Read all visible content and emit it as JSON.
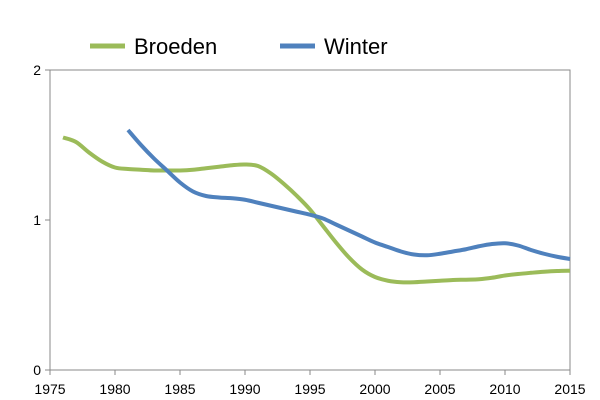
{
  "chart_data": {
    "type": "line",
    "title": "",
    "xlabel": "",
    "ylabel": "",
    "xlim": [
      1975,
      2015
    ],
    "ylim": [
      0,
      2
    ],
    "x_ticks": [
      1975,
      1980,
      1985,
      1990,
      1995,
      2000,
      2005,
      2010,
      2015
    ],
    "y_ticks": [
      0,
      1,
      2
    ],
    "grid": false,
    "legend_position": "top",
    "series": [
      {
        "name": "Broeden",
        "color": "#9BBB59",
        "points": [
          [
            1976,
            1.55
          ],
          [
            1977,
            1.52
          ],
          [
            1978,
            1.45
          ],
          [
            1979,
            1.39
          ],
          [
            1980,
            1.35
          ],
          [
            1981,
            1.34
          ],
          [
            1982,
            1.335
          ],
          [
            1983,
            1.33
          ],
          [
            1984,
            1.33
          ],
          [
            1985,
            1.33
          ],
          [
            1986,
            1.335
          ],
          [
            1987,
            1.345
          ],
          [
            1988,
            1.355
          ],
          [
            1989,
            1.365
          ],
          [
            1990,
            1.37
          ],
          [
            1991,
            1.36
          ],
          [
            1992,
            1.31
          ],
          [
            1993,
            1.24
          ],
          [
            1994,
            1.16
          ],
          [
            1995,
            1.07
          ],
          [
            1996,
            0.96
          ],
          [
            1997,
            0.85
          ],
          [
            1998,
            0.75
          ],
          [
            1999,
            0.67
          ],
          [
            2000,
            0.62
          ],
          [
            2001,
            0.595
          ],
          [
            2002,
            0.585
          ],
          [
            2003,
            0.585
          ],
          [
            2004,
            0.59
          ],
          [
            2005,
            0.595
          ],
          [
            2006,
            0.6
          ],
          [
            2007,
            0.602
          ],
          [
            2008,
            0.605
          ],
          [
            2009,
            0.615
          ],
          [
            2010,
            0.63
          ],
          [
            2011,
            0.64
          ],
          [
            2012,
            0.648
          ],
          [
            2013,
            0.655
          ],
          [
            2014,
            0.66
          ],
          [
            2015,
            0.662
          ]
        ]
      },
      {
        "name": "Winter",
        "color": "#4F81BD",
        "points": [
          [
            1981,
            1.6
          ],
          [
            1982,
            1.5
          ],
          [
            1983,
            1.41
          ],
          [
            1984,
            1.33
          ],
          [
            1985,
            1.25
          ],
          [
            1986,
            1.19
          ],
          [
            1987,
            1.16
          ],
          [
            1988,
            1.15
          ],
          [
            1989,
            1.145
          ],
          [
            1990,
            1.135
          ],
          [
            1991,
            1.115
          ],
          [
            1992,
            1.095
          ],
          [
            1993,
            1.075
          ],
          [
            1994,
            1.055
          ],
          [
            1995,
            1.035
          ],
          [
            1996,
            1.01
          ],
          [
            1997,
            0.97
          ],
          [
            1998,
            0.93
          ],
          [
            1999,
            0.89
          ],
          [
            2000,
            0.85
          ],
          [
            2001,
            0.82
          ],
          [
            2002,
            0.79
          ],
          [
            2003,
            0.77
          ],
          [
            2004,
            0.765
          ],
          [
            2005,
            0.775
          ],
          [
            2006,
            0.79
          ],
          [
            2007,
            0.805
          ],
          [
            2008,
            0.825
          ],
          [
            2009,
            0.84
          ],
          [
            2010,
            0.845
          ],
          [
            2011,
            0.83
          ],
          [
            2012,
            0.8
          ],
          [
            2013,
            0.775
          ],
          [
            2014,
            0.755
          ],
          [
            2015,
            0.74
          ]
        ]
      }
    ]
  }
}
